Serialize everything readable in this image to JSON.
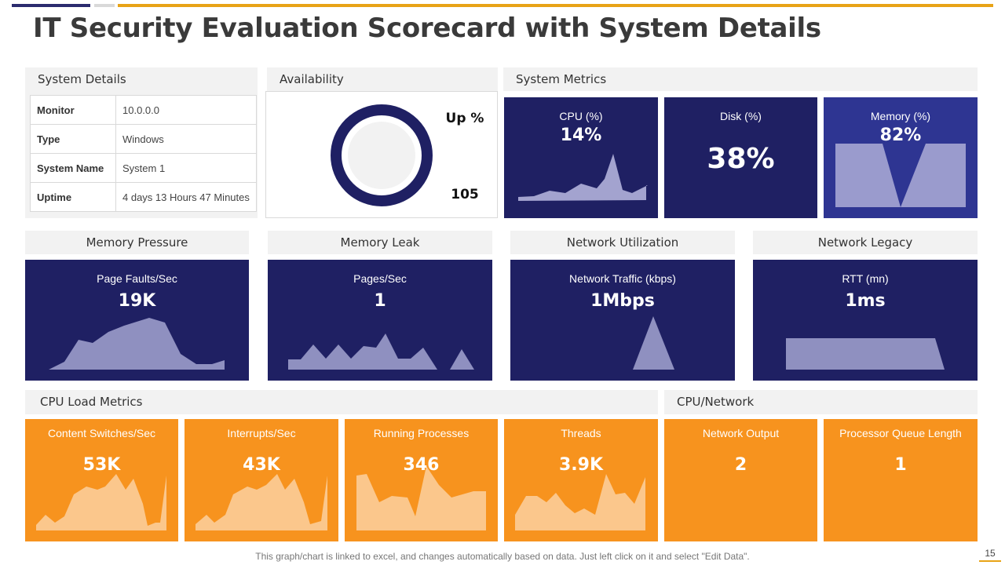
{
  "title": "IT Security Evaluation Scorecard with System Details",
  "system_details": {
    "header": "System Details",
    "rows": [
      {
        "key": "Monitor",
        "value": "10.0.0.0"
      },
      {
        "key": "Type",
        "value": "Windows"
      },
      {
        "key": "System Name",
        "value": "System 1"
      },
      {
        "key": "Uptime",
        "value": "4 days 13 Hours 47 Minutes"
      }
    ]
  },
  "availability": {
    "header": "Availability",
    "label": "Up %",
    "value": "105"
  },
  "system_metrics": {
    "header": "System Metrics",
    "cpu": {
      "label": "CPU (%)",
      "value": "14%"
    },
    "disk": {
      "label": "Disk (%)",
      "value": "38%"
    },
    "memory": {
      "label": "Memory  (%)",
      "value": "82%"
    }
  },
  "memory_pressure": {
    "header": "Memory Pressure",
    "label": "Page Faults/Sec",
    "value": "19K"
  },
  "memory_leak": {
    "header": "Memory Leak",
    "label": "Pages/Sec",
    "value": "1"
  },
  "network_utilization": {
    "header": "Network Utilization",
    "label": "Network Traffic (kbps)",
    "value": "1Mbps"
  },
  "network_legacy": {
    "header": "Network Legacy",
    "label": "RTT (mn)",
    "value": "1ms"
  },
  "cpu_load": {
    "header": "CPU Load Metrics",
    "tiles": [
      {
        "label": "Content Switches/Sec",
        "value": "53K"
      },
      {
        "label": "Interrupts/Sec",
        "value": "43K"
      },
      {
        "label": "Running Processes",
        "value": "346"
      },
      {
        "label": "Threads",
        "value": "3.9K"
      }
    ]
  },
  "cpu_network": {
    "header": "CPU/Network",
    "tiles": [
      {
        "label": "Network Output",
        "value": "2"
      },
      {
        "label": "Processor Queue Length",
        "value": "1"
      }
    ]
  },
  "footer": "This graph/chart is linked to excel, and changes automatically based on data. Just left click on it and select \"Edit Data\".",
  "page_number": "15",
  "colors": {
    "navy": "#1f2063",
    "blue": "#2e3592",
    "orange": "#f7931e",
    "accent": "#e8a317"
  }
}
